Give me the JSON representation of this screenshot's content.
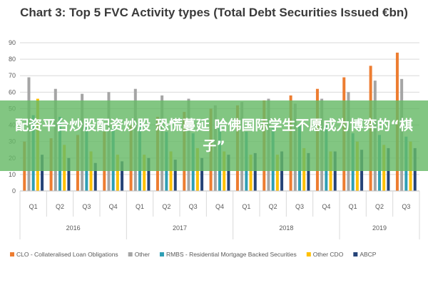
{
  "chart_data": {
    "type": "bar",
    "title": "Chart 3: Top 5 FVC Activity types (Total Debt Securities Issued €bn)",
    "xlabel": "",
    "ylabel": "",
    "ylim": [
      0,
      90
    ],
    "yticks": [
      0,
      10,
      20,
      30,
      40,
      50,
      60,
      70,
      80,
      90
    ],
    "grid": true,
    "legend_position": "bottom",
    "categories": [
      "Q1",
      "Q2",
      "Q3",
      "Q4",
      "Q1",
      "Q2",
      "Q3",
      "Q4",
      "Q1",
      "Q2",
      "Q3",
      "Q4",
      "Q1",
      "Q2",
      "Q3"
    ],
    "groups": [
      {
        "label": "2016",
        "count": 4
      },
      {
        "label": "2017",
        "count": 4
      },
      {
        "label": "2018",
        "count": 4
      },
      {
        "label": "2019",
        "count": 3
      }
    ],
    "series": [
      {
        "name": "CLO - Collateralised Loan Obligations",
        "color": "#ed7d31",
        "values": [
          30,
          32,
          34,
          36,
          40,
          45,
          48,
          50,
          52,
          55,
          58,
          62,
          69,
          76,
          84
        ]
      },
      {
        "name": "Other",
        "color": "#a5a5a5",
        "values": [
          69,
          62,
          59,
          60,
          62,
          58,
          56,
          52,
          54,
          56,
          53,
          56,
          60,
          67,
          68
        ]
      },
      {
        "name": "RMBS - Residential Mortgage Backed Securities",
        "color": "#2e9fb5",
        "values": [
          46,
          45,
          40,
          38,
          42,
          36,
          35,
          40,
          36,
          38,
          40,
          40,
          35,
          34,
          33
        ]
      },
      {
        "name": "Other CDO",
        "color": "#ffc000",
        "values": [
          56,
          28,
          24,
          22,
          22,
          24,
          26,
          24,
          22,
          22,
          26,
          24,
          30,
          28,
          30
        ]
      },
      {
        "name": "ABCP",
        "color": "#264478",
        "values": [
          22,
          20,
          17,
          18,
          20,
          19,
          20,
          22,
          23,
          24,
          23,
          24,
          25,
          26,
          26
        ]
      }
    ]
  },
  "overlay": {
    "text": "配资平台炒股配资炒股 恐慌蔓延 哈佛国际学生不愿成为博弈的“棋子”"
  }
}
